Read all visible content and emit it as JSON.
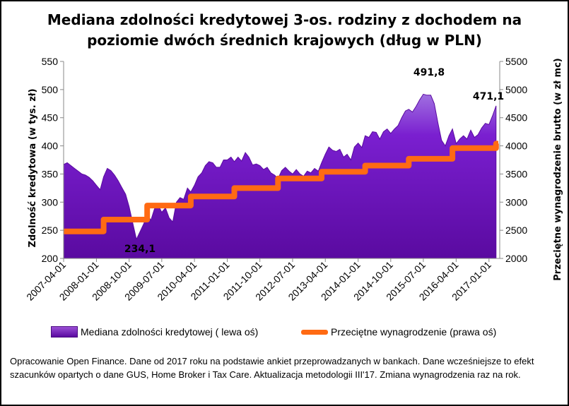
{
  "title": "Mediana zdolności kredytowej 3-os. rodziny z dochodem na poziomie dwóch średnich krajowych (dług w PLN)",
  "colors": {
    "area": "#6a0dad",
    "area_light": "#a070e0",
    "line": "#ff6a13"
  },
  "legend": {
    "area_label": "Mediana zdolności kredytowej ( lewa oś)",
    "line_label": "Przeciętne wynagrodzenie (prawa oś)"
  },
  "note": "Opracowanie Open Finance. Dane od 2017 roku na podstawie ankiet przeprowadzanych w bankach. Dane wcześniejsze to efekt szacunków opartych o dane GUS, Home Broker i Tax Care. Aktualizacja metodologii III'17. Zmiana wynagrodzenia raz na rok.",
  "chart_data": {
    "type": "area",
    "ylabel_left": "Zdolność kredytowa  (w tys. zł)",
    "ylabel_right": "Przeciętne wynagrodzenie brutto  (w zł mc)",
    "ylim_left": [
      200,
      550
    ],
    "ylim_right": [
      2000,
      5500
    ],
    "yticks_left": [
      "200",
      "250",
      "300",
      "350",
      "400",
      "450",
      "500",
      "550"
    ],
    "yticks_right": [
      "2000",
      "2500",
      "3000",
      "3500",
      "4000",
      "4500",
      "5000",
      "5500"
    ],
    "xticks": [
      "2007-04-01",
      "2008-01-01",
      "2008-10-01",
      "2009-07-01",
      "2010-04-01",
      "2011-01-01",
      "2011-10-01",
      "2012-07-01",
      "2013-04-01",
      "2014-01-01",
      "2014-10-01",
      "2015-07-01",
      "2016-04-01",
      "2017-01-01"
    ],
    "grid": false,
    "annotations": [
      {
        "label": "234,1",
        "x": "2008-12-01",
        "y": 234.1
      },
      {
        "label": "491,8",
        "x": "2015-05-01",
        "y": 491.8
      },
      {
        "label": "471,1",
        "x": "2017-03-01",
        "y": 471.1
      }
    ],
    "series": [
      {
        "name": "Mediana zdolności kredytowej ( lewa oś)",
        "axis": "left",
        "x": [
          "2007-04-01",
          "2007-05-01",
          "2007-06-01",
          "2007-07-01",
          "2007-08-01",
          "2007-09-01",
          "2007-10-01",
          "2007-11-01",
          "2007-12-01",
          "2008-01-01",
          "2008-02-01",
          "2008-03-01",
          "2008-04-01",
          "2008-05-01",
          "2008-06-01",
          "2008-07-01",
          "2008-08-01",
          "2008-09-01",
          "2008-10-01",
          "2008-11-01",
          "2008-12-01",
          "2009-01-01",
          "2009-02-01",
          "2009-03-01",
          "2009-04-01",
          "2009-05-01",
          "2009-06-01",
          "2009-07-01",
          "2009-08-01",
          "2009-09-01",
          "2009-10-01",
          "2009-11-01",
          "2009-12-01",
          "2010-01-01",
          "2010-02-01",
          "2010-03-01",
          "2010-04-01",
          "2010-05-01",
          "2010-06-01",
          "2010-07-01",
          "2010-08-01",
          "2010-09-01",
          "2010-10-01",
          "2010-11-01",
          "2010-12-01",
          "2011-01-01",
          "2011-02-01",
          "2011-03-01",
          "2011-04-01",
          "2011-05-01",
          "2011-06-01",
          "2011-07-01",
          "2011-08-01",
          "2011-09-01",
          "2011-10-01",
          "2011-11-01",
          "2011-12-01",
          "2012-01-01",
          "2012-02-01",
          "2012-03-01",
          "2012-04-01",
          "2012-05-01",
          "2012-06-01",
          "2012-07-01",
          "2012-08-01",
          "2012-09-01",
          "2012-10-01",
          "2012-11-01",
          "2012-12-01",
          "2013-01-01",
          "2013-02-01",
          "2013-03-01",
          "2013-04-01",
          "2013-05-01",
          "2013-06-01",
          "2013-07-01",
          "2013-08-01",
          "2013-09-01",
          "2013-10-01",
          "2013-11-01",
          "2013-12-01",
          "2014-01-01",
          "2014-02-01",
          "2014-03-01",
          "2014-04-01",
          "2014-05-01",
          "2014-06-01",
          "2014-07-01",
          "2014-08-01",
          "2014-09-01",
          "2014-10-01",
          "2014-11-01",
          "2014-12-01",
          "2015-01-01",
          "2015-02-01",
          "2015-03-01",
          "2015-04-01",
          "2015-05-01",
          "2015-06-01",
          "2015-07-01",
          "2015-08-01",
          "2015-09-01",
          "2015-10-01",
          "2015-11-01",
          "2015-12-01",
          "2016-01-01",
          "2016-02-01",
          "2016-03-01",
          "2016-04-01",
          "2016-05-01",
          "2016-06-01",
          "2016-07-01",
          "2016-08-01",
          "2016-09-01",
          "2016-10-01",
          "2016-11-01",
          "2016-12-01",
          "2017-01-01",
          "2017-02-01",
          "2017-03-01"
        ],
        "values": [
          367,
          370,
          365,
          360,
          355,
          350,
          348,
          344,
          338,
          330,
          322,
          345,
          360,
          356,
          348,
          338,
          326,
          314,
          292,
          262,
          234.1,
          248,
          262,
          278,
          268,
          288,
          295,
          282,
          290,
          272,
          265,
          300,
          308,
          305,
          325,
          318,
          330,
          345,
          352,
          365,
          372,
          370,
          362,
          362,
          375,
          375,
          380,
          372,
          380,
          373,
          388,
          380,
          366,
          368,
          365,
          358,
          362,
          352,
          348,
          342,
          356,
          362,
          355,
          350,
          358,
          350,
          346,
          355,
          352,
          360,
          355,
          370,
          385,
          398,
          392,
          390,
          394,
          380,
          385,
          375,
          398,
          405,
          397,
          418,
          415,
          425,
          424,
          412,
          425,
          430,
          422,
          430,
          436,
          450,
          462,
          465,
          460,
          470,
          482,
          491.8,
          490,
          490,
          475,
          440,
          410,
          400,
          418,
          430,
          404,
          412,
          418,
          412,
          428,
          415,
          420,
          432,
          440,
          438,
          454,
          471.1
        ]
      },
      {
        "name": "Przeciętne wynagrodzenie (prawa oś)",
        "axis": "right",
        "steps": [
          {
            "from": "2007-04-01",
            "to": "2008-03-01",
            "value": 2480
          },
          {
            "from": "2008-03-01",
            "to": "2009-03-01",
            "value": 2690
          },
          {
            "from": "2009-03-01",
            "to": "2010-03-01",
            "value": 2940
          },
          {
            "from": "2010-03-01",
            "to": "2011-03-01",
            "value": 3100
          },
          {
            "from": "2011-03-01",
            "to": "2012-03-01",
            "value": 3250
          },
          {
            "from": "2012-03-01",
            "to": "2013-03-01",
            "value": 3420
          },
          {
            "from": "2013-03-01",
            "to": "2014-03-01",
            "value": 3540
          },
          {
            "from": "2014-03-01",
            "to": "2015-03-01",
            "value": 3650
          },
          {
            "from": "2015-03-01",
            "to": "2016-03-01",
            "value": 3770
          },
          {
            "from": "2016-03-01",
            "to": "2017-03-01",
            "value": 3960
          },
          {
            "from": "2017-03-01",
            "to": "2017-04-01",
            "value": 4040
          }
        ]
      }
    ]
  }
}
